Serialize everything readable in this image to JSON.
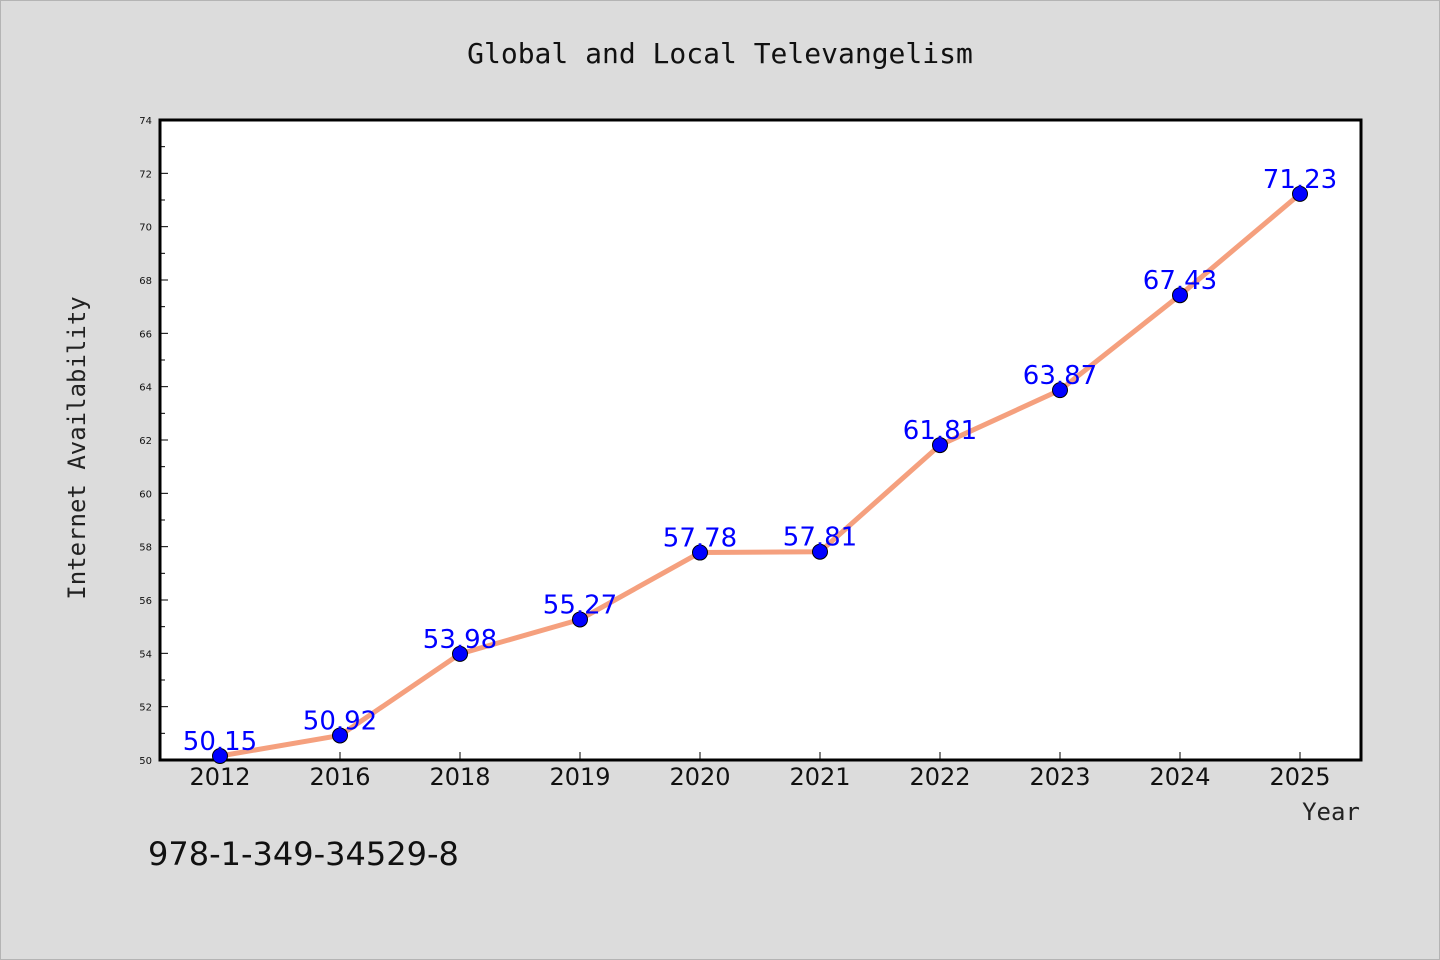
{
  "chart_data": {
    "type": "line",
    "title": "Global and Local Televangelism",
    "xlabel": "Year",
    "ylabel": "Internet Availability",
    "categories": [
      "2012",
      "2016",
      "2018",
      "2019",
      "2020",
      "2021",
      "2022",
      "2023",
      "2024",
      "2025"
    ],
    "series": [
      {
        "values": [
          50.15,
          50.92,
          53.98,
          55.27,
          57.78,
          57.81,
          61.81,
          63.87,
          67.43,
          71.23
        ],
        "labels": [
          "50.15",
          "50.92",
          "53.98",
          "55.27",
          "57.78",
          "57.81",
          "61.81",
          "63.87",
          "67.43",
          "71.23"
        ],
        "line_color": "#f5a07e",
        "marker_color": "#0000ff"
      }
    ],
    "ylim": [
      50,
      74
    ],
    "yticks": [
      "50",
      "52",
      "54",
      "56",
      "58",
      "60",
      "62",
      "64",
      "66",
      "68",
      "70",
      "72",
      "74"
    ],
    "grid": false,
    "legend": "none"
  },
  "footer": {
    "code": "978-1-349-34529-8"
  }
}
